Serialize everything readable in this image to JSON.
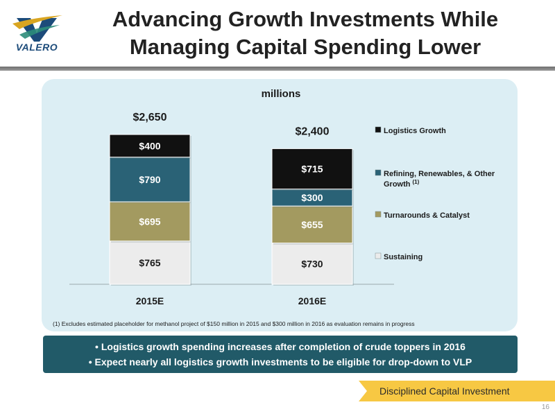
{
  "header": {
    "title_line1": "Advancing Growth Investments While",
    "title_line2": "Managing Capital Spending Lower",
    "logo_text": "VALERO"
  },
  "chart_data": {
    "type": "bar",
    "stacked": true,
    "title": "millions",
    "categories": [
      "2015E",
      "2016E"
    ],
    "totals": [
      2650,
      2400
    ],
    "total_labels": [
      "$2,650",
      "$2,400"
    ],
    "series": [
      {
        "name": "Sustaining",
        "values": [
          765,
          730
        ],
        "labels": [
          "$765",
          "$730"
        ],
        "color": "#ececec",
        "text_color": "#1a1a1a"
      },
      {
        "name": "Turnarounds & Catalyst",
        "values": [
          695,
          655
        ],
        "labels": [
          "$695",
          "$655"
        ],
        "color": "#a39a60",
        "text_color": "#ffffff"
      },
      {
        "name": "Refining, Renewables, & Other Growth",
        "values": [
          790,
          300
        ],
        "labels": [
          "$790",
          "$300"
        ],
        "color": "#2a6276",
        "text_color": "#ffffff"
      },
      {
        "name": "Logistics Growth",
        "values": [
          400,
          715
        ],
        "labels": [
          "$400",
          "$715"
        ],
        "color": "#111111",
        "text_color": "#ffffff"
      }
    ],
    "legend_order": [
      3,
      2,
      1,
      0
    ],
    "legend_lines": [
      [
        "Logistics Growth"
      ],
      [
        "Refining, Renewables, & Other",
        "Growth"
      ],
      [
        "Turnarounds & Catalyst"
      ],
      [
        "Sustaining"
      ]
    ],
    "legend_superscript": {
      "index": 1,
      "text": "(1)"
    },
    "legend_position": "right",
    "grid": false,
    "footnote": "(1) Excludes estimated placeholder for methanol project of $150 million in 2015 and $300 million in 2016 as evaluation remains in progress"
  },
  "bullets": [
    "• Logistics growth spending increases after completion of crude toppers in 2016",
    "• Expect nearly all logistics growth investments to be eligible for drop-down to VLP"
  ],
  "tag": "Disciplined Capital Investment",
  "page_number": "16",
  "colors": {
    "panel_bg": "#dceef4",
    "bullet_bg": "#215a68",
    "tag_bg": "#f7c843",
    "brand_blue": "#1c4b7a",
    "brand_gold": "#d9a521"
  }
}
